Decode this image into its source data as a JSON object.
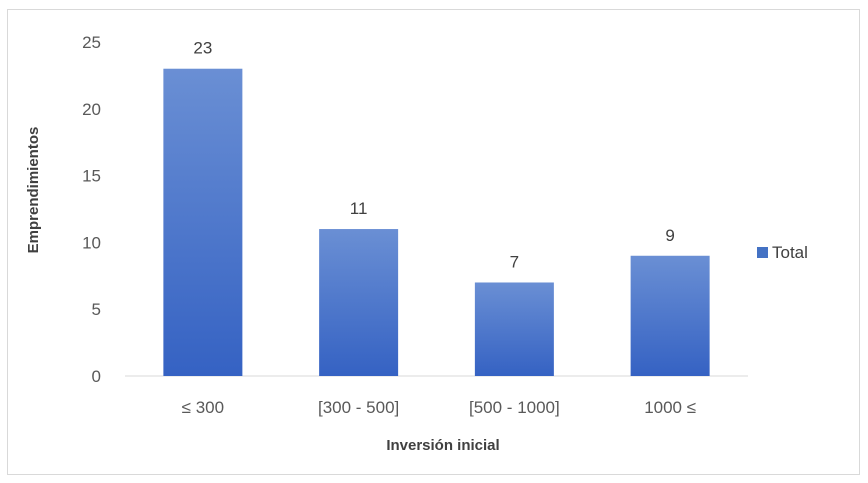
{
  "chart_data": {
    "type": "bar",
    "categories": [
      "≤ 300",
      "[300 - 500]",
      "[500 - 1000]",
      "1000 ≤"
    ],
    "series": [
      {
        "name": "Total",
        "values": [
          23,
          11,
          7,
          9
        ]
      }
    ],
    "xlabel": "Inversión inicial",
    "ylabel": "Emprendimientos",
    "ylim": [
      0,
      25
    ],
    "yticks": [
      0,
      5,
      10,
      15,
      20,
      25
    ],
    "grid": false,
    "data_labels": true,
    "legend_position": "right",
    "colors": {
      "bar_top": "#6a8fd4",
      "bar_bottom": "#3562c3",
      "text": "#404040",
      "axis": "#d9d9d9"
    }
  }
}
